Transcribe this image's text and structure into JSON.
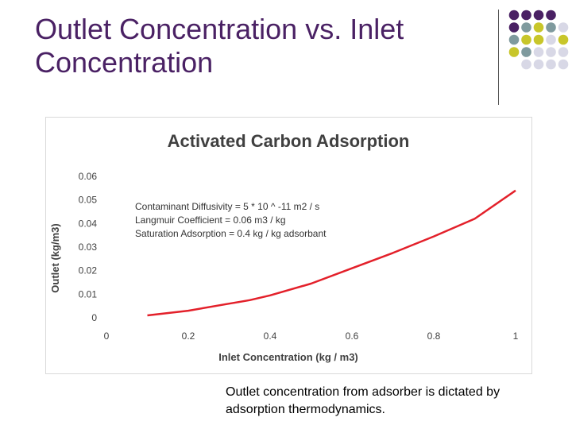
{
  "slide": {
    "title": "Outlet Concentration vs. Inlet Concentration",
    "caption": "Outlet concentration from adsorber is dictated by adsorption thermodynamics."
  },
  "decoration": {
    "dot_colors": [
      "#4a2164",
      "#7f9a9e",
      "#c8c62a",
      "#d8d8e6"
    ]
  },
  "chart_data": {
    "type": "line",
    "title": "Activated Carbon Adsorption",
    "xlabel": "Inlet Concentration (kg / m3)",
    "ylabel": "Outlet (kg/m3)",
    "xlim": [
      0,
      1
    ],
    "ylim": [
      0,
      0.06
    ],
    "xticks": [
      "0",
      "0.2",
      "0.4",
      "0.6",
      "0.8",
      "1"
    ],
    "yticks": [
      "0",
      "0.01",
      "0.02",
      "0.03",
      "0.04",
      "0.05",
      "0.06"
    ],
    "grid": false,
    "annotations": [
      "Contaminant Diffusivity = 5 * 10 ^ -11 m2 / s",
      "Langmuir Coefficient = 0.06 m3 / kg",
      "Saturation Adsorption = 0.4 kg / kg adsorbant"
    ],
    "series": [
      {
        "color": "#e3202a",
        "x": [
          0.1,
          0.2,
          0.3,
          0.35,
          0.4,
          0.5,
          0.6,
          0.7,
          0.8,
          0.9,
          1.0
        ],
        "y": [
          0.001,
          0.003,
          0.006,
          0.0075,
          0.0095,
          0.0145,
          0.021,
          0.0275,
          0.0345,
          0.042,
          0.054
        ]
      }
    ]
  }
}
